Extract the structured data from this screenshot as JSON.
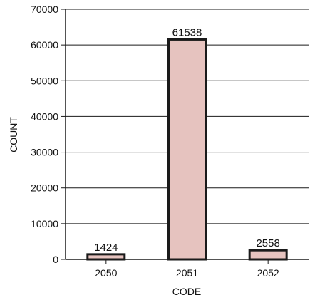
{
  "chart_data": {
    "type": "bar",
    "title": "",
    "xlabel": "CODE",
    "ylabel": "COUNT",
    "categories": [
      "2050",
      "2051",
      "2052"
    ],
    "values": [
      1424,
      61538,
      2558
    ],
    "data_labels": [
      "1424",
      "61538",
      "2558"
    ],
    "ylim": [
      0,
      70000
    ],
    "yticks": [
      0,
      10000,
      20000,
      30000,
      40000,
      50000,
      60000,
      70000
    ],
    "ytick_labels": [
      "0",
      "10000",
      "20000",
      "30000",
      "40000",
      "50000",
      "60000",
      "70000"
    ],
    "grid": true,
    "legend": "none",
    "bar_color": "#e6c3bf",
    "bar_edge_color": "#1a1a1a"
  }
}
